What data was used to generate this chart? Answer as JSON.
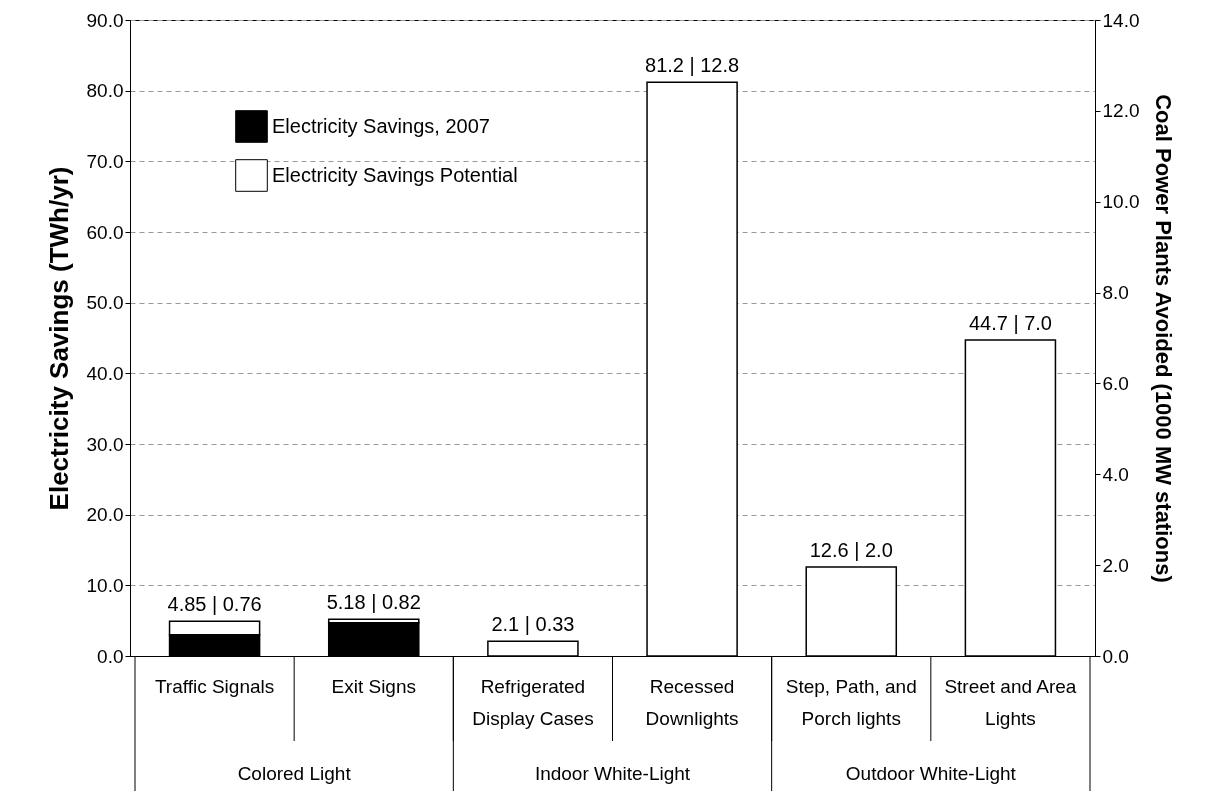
{
  "chart_data": {
    "type": "bar",
    "stacked": true,
    "categories": [
      "Traffic Signals",
      "Exit Signs",
      "Refrigerated\nDisplay Cases",
      "Recessed\nDownlights",
      "Step, Path, and\nPorch lights",
      "Street and Area\nLights"
    ],
    "series": [
      {
        "name": "Electricity Savings, 2007",
        "color": "#000000",
        "values": [
          3.0,
          4.7,
          0,
          0,
          0,
          0
        ]
      },
      {
        "name": "Electricity Savings Potential",
        "color": "#ffffff",
        "values": [
          1.9,
          0.5,
          2.1,
          81.2,
          12.6,
          44.7
        ]
      }
    ],
    "totals": [
      "4.85  |  0.76",
      "5.18  |  0.82",
      "2.1  |  0.33",
      "81.2  |  12.8",
      "12.6  |  2.0",
      "44.7  |  7.0"
    ],
    "ylabel": "Electricity Savings (TWh/yr)",
    "y2label": "Coal Power Plants Avoided (1000 MW stations)",
    "ylim": [
      0,
      90
    ],
    "yticks": [
      {
        "value": 0,
        "label": "0.0"
      },
      {
        "value": 10,
        "label": "10.0"
      },
      {
        "value": 20,
        "label": "20.0"
      },
      {
        "value": 30,
        "label": "30.0"
      },
      {
        "value": 40,
        "label": "40.0"
      },
      {
        "value": 50,
        "label": "50.0"
      },
      {
        "value": 60,
        "label": "60.0"
      },
      {
        "value": 70,
        "label": "70.0"
      },
      {
        "value": 80,
        "label": "80.0"
      },
      {
        "value": 90,
        "label": "90.0"
      }
    ],
    "y2lim": [
      0,
      14
    ],
    "y2ticks": [
      {
        "value": 0,
        "label": "0.0"
      },
      {
        "value": 2,
        "label": "2.0"
      },
      {
        "value": 4,
        "label": "4.0"
      },
      {
        "value": 6,
        "label": "6.0"
      },
      {
        "value": 8,
        "label": "8.0"
      },
      {
        "value": 10,
        "label": "10.0"
      },
      {
        "value": 12,
        "label": "12.0"
      },
      {
        "value": 14,
        "label": "14.0"
      }
    ],
    "annotations": [
      "Colored Light",
      "Indoor White-Light",
      "Outdoor White-Light"
    ],
    "grid": "y",
    "legend": "top left"
  }
}
